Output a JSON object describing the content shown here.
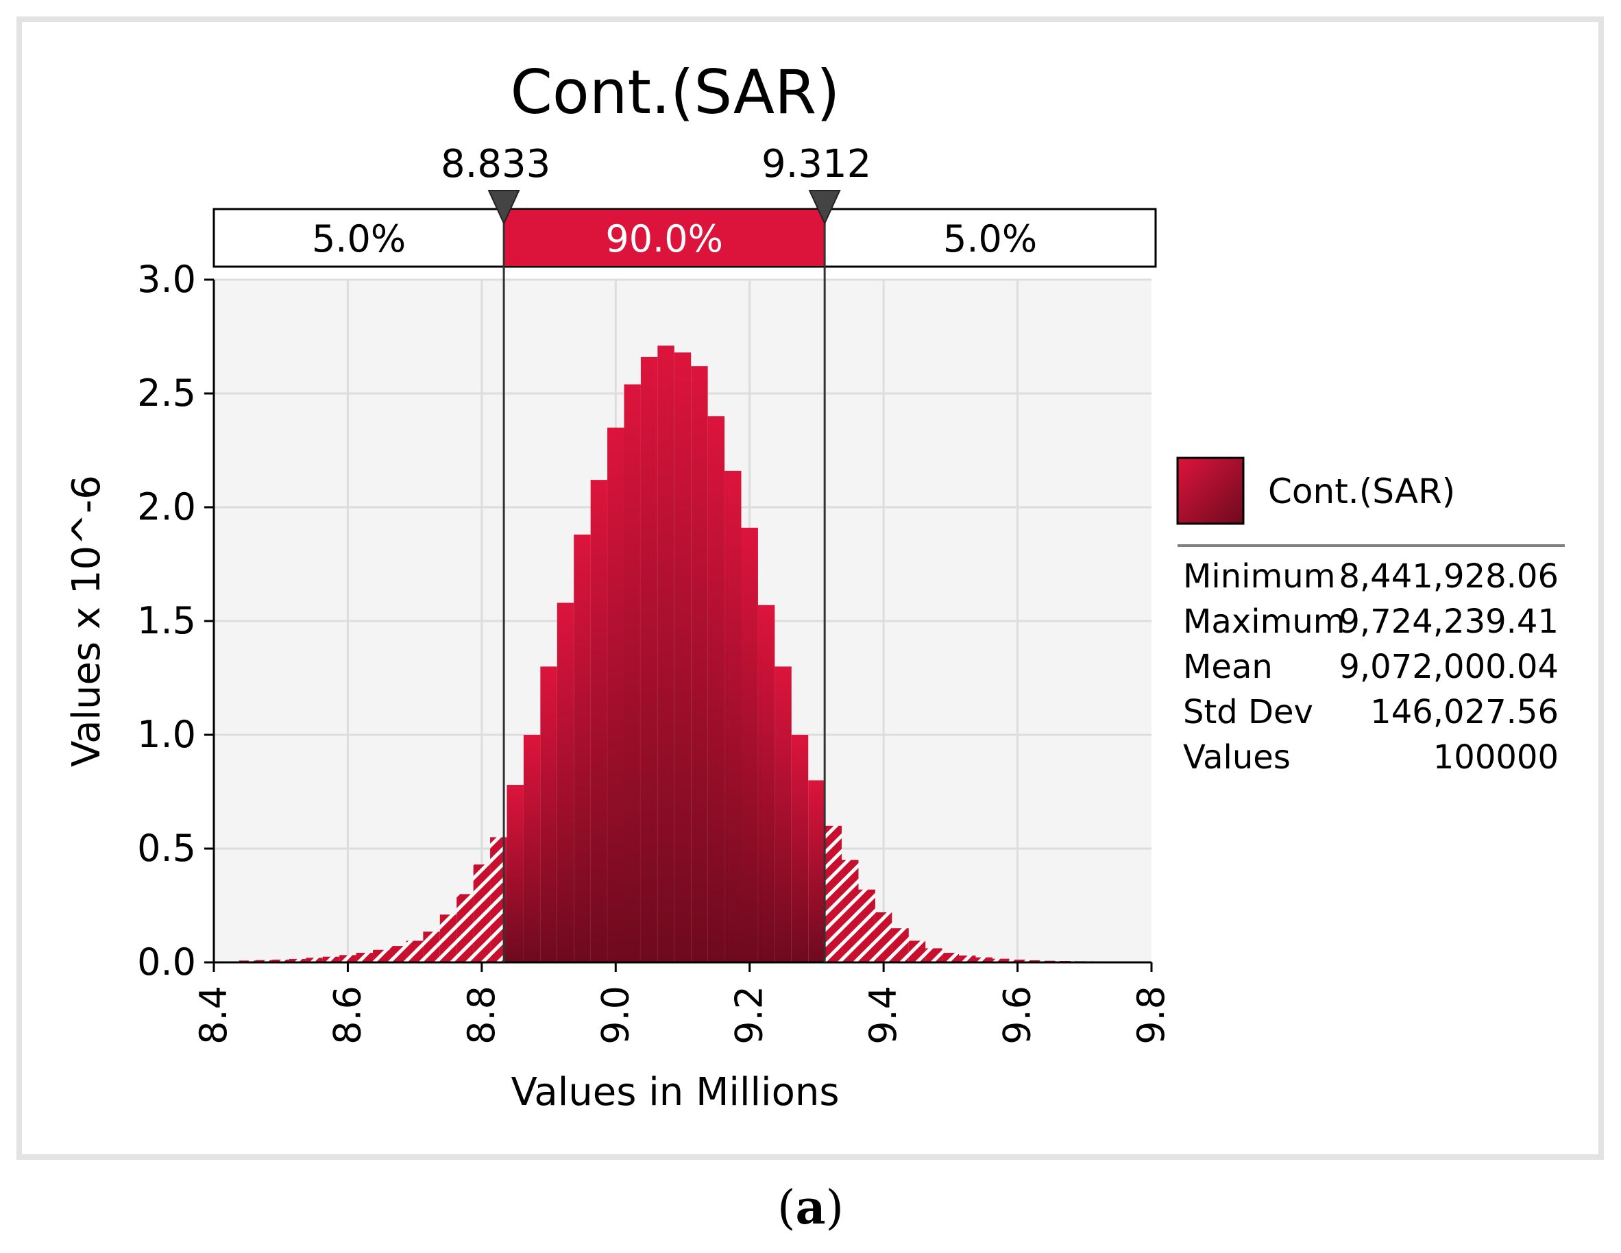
{
  "chart_data": {
    "type": "bar",
    "title": "Cont.(SAR)",
    "xlabel": "Values in Millions",
    "ylabel": "Values x 10^-6",
    "xlim": [
      8.4,
      9.8
    ],
    "ylim": [
      0,
      3.0
    ],
    "x_ticks": [
      "8.4",
      "8.6",
      "8.8",
      "9.0",
      "9.2",
      "9.4",
      "9.6",
      "9.8"
    ],
    "y_ticks": [
      "0.0",
      "0.5",
      "1.0",
      "1.5",
      "2.0",
      "2.5",
      "3.0"
    ],
    "bin_width": 0.025,
    "bins": [
      {
        "x": 8.45,
        "y": 0.008
      },
      {
        "x": 8.475,
        "y": 0.01
      },
      {
        "x": 8.5,
        "y": 0.012
      },
      {
        "x": 8.525,
        "y": 0.015
      },
      {
        "x": 8.55,
        "y": 0.02
      },
      {
        "x": 8.575,
        "y": 0.025
      },
      {
        "x": 8.6,
        "y": 0.032
      },
      {
        "x": 8.625,
        "y": 0.042
      },
      {
        "x": 8.65,
        "y": 0.055
      },
      {
        "x": 8.675,
        "y": 0.072
      },
      {
        "x": 8.7,
        "y": 0.095
      },
      {
        "x": 8.725,
        "y": 0.135
      },
      {
        "x": 8.75,
        "y": 0.21
      },
      {
        "x": 8.775,
        "y": 0.3
      },
      {
        "x": 8.8,
        "y": 0.43
      },
      {
        "x": 8.825,
        "y": 0.55
      },
      {
        "x": 8.85,
        "y": 0.78
      },
      {
        "x": 8.875,
        "y": 1.0
      },
      {
        "x": 8.9,
        "y": 1.3
      },
      {
        "x": 8.925,
        "y": 1.58
      },
      {
        "x": 8.95,
        "y": 1.88
      },
      {
        "x": 8.975,
        "y": 2.12
      },
      {
        "x": 9.0,
        "y": 2.35
      },
      {
        "x": 9.025,
        "y": 2.54
      },
      {
        "x": 9.05,
        "y": 2.66
      },
      {
        "x": 9.075,
        "y": 2.71
      },
      {
        "x": 9.1,
        "y": 2.68
      },
      {
        "x": 9.125,
        "y": 2.62
      },
      {
        "x": 9.15,
        "y": 2.4
      },
      {
        "x": 9.175,
        "y": 2.16
      },
      {
        "x": 9.2,
        "y": 1.91
      },
      {
        "x": 9.225,
        "y": 1.57
      },
      {
        "x": 9.25,
        "y": 1.3
      },
      {
        "x": 9.275,
        "y": 1.0
      },
      {
        "x": 9.3,
        "y": 0.8
      },
      {
        "x": 9.325,
        "y": 0.6
      },
      {
        "x": 9.35,
        "y": 0.45
      },
      {
        "x": 9.375,
        "y": 0.32
      },
      {
        "x": 9.4,
        "y": 0.22
      },
      {
        "x": 9.425,
        "y": 0.15
      },
      {
        "x": 9.45,
        "y": 0.095
      },
      {
        "x": 9.475,
        "y": 0.062
      },
      {
        "x": 9.5,
        "y": 0.042
      },
      {
        "x": 9.525,
        "y": 0.03
      },
      {
        "x": 9.55,
        "y": 0.022
      },
      {
        "x": 9.575,
        "y": 0.016
      },
      {
        "x": 9.6,
        "y": 0.012
      },
      {
        "x": 9.625,
        "y": 0.009
      },
      {
        "x": 9.65,
        "y": 0.007
      },
      {
        "x": 9.675,
        "y": 0.006
      },
      {
        "x": 9.7,
        "y": 0.005
      },
      {
        "x": 9.725,
        "y": 0.004
      }
    ],
    "lower_bound": 8.833,
    "upper_bound": 9.312,
    "lower_bound_label": "8.833",
    "upper_bound_label": "9.312",
    "band_labels": [
      "5.0%",
      "90.0%",
      "5.0%"
    ],
    "legend": {
      "series_name": "Cont.(SAR)",
      "position": "right"
    },
    "stats": [
      {
        "label": "Minimum",
        "value": "8,441,928.06"
      },
      {
        "label": "Maximum",
        "value": "9,724,239.41"
      },
      {
        "label": "Mean",
        "value": "9,072,000.04"
      },
      {
        "label": "Std Dev",
        "value": "146,027.56"
      },
      {
        "label": "Values",
        "value": "100000"
      }
    ],
    "colors": {
      "accent": "#dc143c",
      "dark": "#6e0a1e",
      "plot_bg": "#f4f4f4",
      "grid": "#dddddd"
    }
  },
  "caption": {
    "open": "(",
    "letter": "a",
    "close": ")"
  }
}
